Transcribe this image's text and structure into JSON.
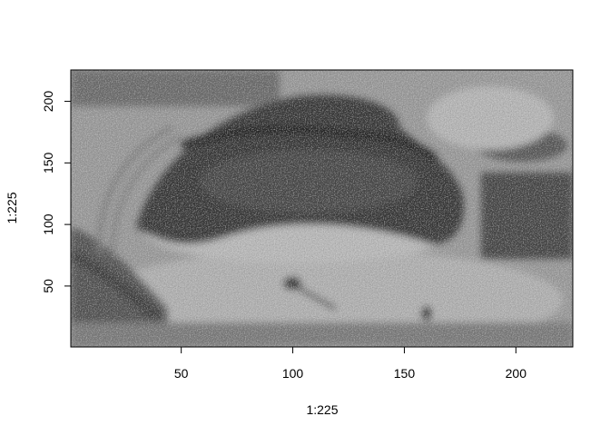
{
  "chart_data": {
    "type": "heatmap",
    "title": "",
    "xlabel": "1:225",
    "ylabel": "1:225",
    "xlim": [
      0.5,
      225.5
    ],
    "ylim": [
      0.5,
      225.5
    ],
    "x_ticks": [
      50,
      100,
      150,
      200
    ],
    "x_tick_labels": [
      "50",
      "100",
      "150",
      "200"
    ],
    "y_ticks": [
      50,
      100,
      150,
      200
    ],
    "y_tick_labels": [
      "50",
      "100",
      "150",
      "200"
    ],
    "grid": false,
    "legend": "none",
    "colormap": "grayscale",
    "background_color": "#ffffff"
  }
}
